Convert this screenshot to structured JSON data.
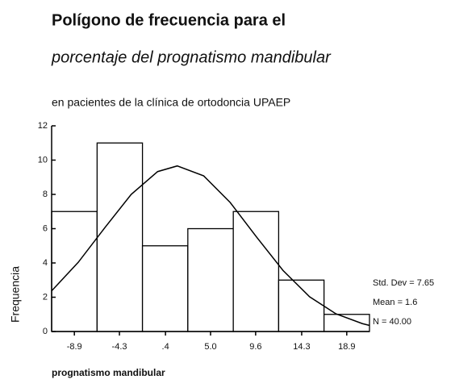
{
  "chart_data": {
    "type": "histogram",
    "title": "Polígono de frecuencia para el",
    "subtitle": "porcentaje del prognatismo mandibular",
    "subtitle2": "en pacientes de la clínica de ortodoncia UPAEP",
    "ylabel": "Frequencia",
    "xlabel": "prognatismo mandibular",
    "bins": [
      -11.22,
      -6.58,
      -1.95,
      2.68,
      7.32,
      11.95,
      16.58,
      21.22
    ],
    "values": [
      7,
      11,
      5,
      6,
      7,
      3,
      1
    ],
    "color": "#ffffff",
    "xlim": [
      -11.22,
      21.22
    ],
    "xticks": [
      -8.9,
      -4.3,
      {
        "value": 0.4,
        "label": ".4"
      },
      {
        "value": 5,
        "label": "5.0"
      },
      9.6,
      14.3,
      18.9
    ],
    "ylim": [
      0,
      12
    ],
    "yticks": [
      0,
      2,
      4,
      6,
      8,
      10,
      12
    ],
    "normal_curve": {
      "x": [
        -11.2,
        -8.5,
        -5.8,
        -3.1,
        -0.4,
        1.6,
        4.3,
        7,
        9.7,
        12.4,
        15.1,
        17.8,
        20.5,
        21.2
      ],
      "y": [
        2.38,
        4.04,
        6.05,
        8.0,
        9.33,
        9.66,
        9.08,
        7.53,
        5.51,
        3.56,
        2.03,
        1.03,
        0.46,
        0.36
      ]
    },
    "annotations": [
      "Std. Dev = 7.65",
      "Mean = 1.6",
      "N = 40.00"
    ]
  }
}
